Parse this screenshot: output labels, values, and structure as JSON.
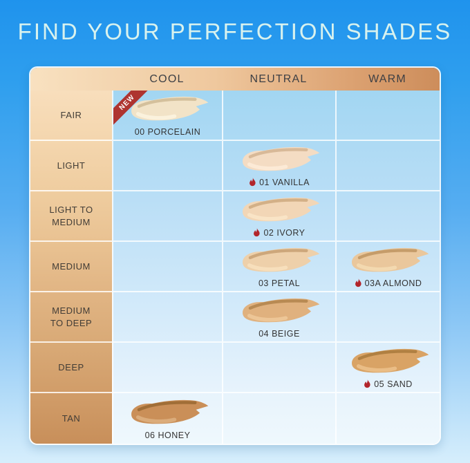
{
  "title": "FIND YOUR PERFECTION SHADES",
  "legend": {
    "new_badge": "NEW"
  },
  "colors": {
    "ribbon_red": "#ae3430",
    "flame_red": "#b2252b",
    "title_text": "#d8f2ee",
    "header_text": "#3d3f44",
    "cell_text": "#333333",
    "top_background_blue": "#2f9fee",
    "bottom_background_blue": "#d6eefc"
  },
  "columns": [
    "COOL",
    "NEUTRAL",
    "WARM"
  ],
  "rows": [
    {
      "label": "FAIR",
      "label_bg": [
        "#f8debc",
        "#f4d6ae"
      ],
      "cells": [
        {
          "shade": "00 PORCELAIN",
          "new": true,
          "hot": false,
          "base": "#f2e3c7",
          "crease": "#c8b08a",
          "highlight": "#fdf4e0"
        },
        null,
        null
      ]
    },
    {
      "label": "LIGHT",
      "label_bg": [
        "#f4d6ae",
        "#efcda0"
      ],
      "cells": [
        null,
        {
          "shade": "01 VANILLA",
          "new": false,
          "hot": true,
          "base": "#f4dcc3",
          "crease": "#ccaa86",
          "highlight": "#fdecd9"
        },
        null
      ]
    },
    {
      "label": "LIGHT TO\nMEDIUM",
      "label_bg": [
        "#efcda0",
        "#e9c292"
      ],
      "cells": [
        null,
        {
          "shade": "02 IVORY",
          "new": false,
          "hot": true,
          "base": "#f2d6b6",
          "crease": "#c6a074",
          "highlight": "#fae6c9"
        },
        null
      ]
    },
    {
      "label": "MEDIUM",
      "label_bg": [
        "#e9c292",
        "#e1b584"
      ],
      "cells": [
        null,
        {
          "shade": "03 PETAL",
          "new": false,
          "hot": false,
          "base": "#eed0aa",
          "crease": "#bf9666",
          "highlight": "#f8e2c0"
        },
        {
          "shade": "03A ALMOND",
          "new": false,
          "hot": true,
          "base": "#eac79c",
          "crease": "#b58a55",
          "highlight": "#f5dcb4"
        }
      ]
    },
    {
      "label": "MEDIUM\nTO DEEP",
      "label_bg": [
        "#e1b584",
        "#d9aa77"
      ],
      "cells": [
        null,
        {
          "shade": "04 BEIGE",
          "new": false,
          "hot": false,
          "base": "#e0b17e",
          "crease": "#a67942",
          "highlight": "#eeca9b"
        },
        null
      ]
    },
    {
      "label": "DEEP",
      "label_bg": [
        "#d9aa77",
        "#d19d69"
      ],
      "cells": [
        null,
        null,
        {
          "shade": "05 SAND",
          "new": false,
          "hot": true,
          "base": "#d9a365",
          "crease": "#9e7033",
          "highlight": "#ecc28c"
        }
      ]
    },
    {
      "label": "TAN",
      "label_bg": [
        "#d19d69",
        "#c88f5a"
      ],
      "cells": [
        {
          "shade": "06 HONEY",
          "new": false,
          "hot": false,
          "base": "#ca8f58",
          "crease": "#8f5f2a",
          "highlight": "#deb181"
        },
        null,
        null
      ]
    }
  ]
}
